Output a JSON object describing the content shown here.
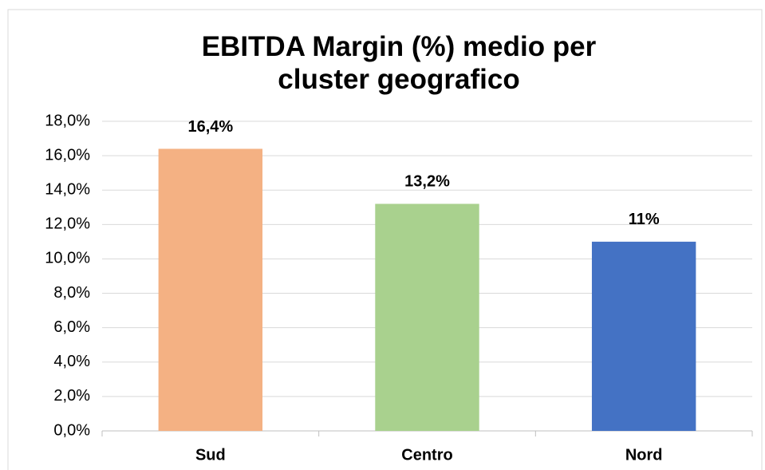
{
  "chart_data": {
    "type": "bar",
    "title": "EBITDA Margin (%) medio per cluster geografico",
    "categories": [
      "Sud",
      "Centro",
      "Nord"
    ],
    "values": [
      16.4,
      13.2,
      11
    ],
    "value_labels": [
      "16,4%",
      "13,2%",
      "11%"
    ],
    "colors": [
      "#f4b183",
      "#a9d18e",
      "#4472c4"
    ],
    "ylim": [
      0,
      18
    ],
    "yticks": [
      {
        "value": 0,
        "label": "0,0%"
      },
      {
        "value": 2,
        "label": "2,0%"
      },
      {
        "value": 4,
        "label": "4,0%"
      },
      {
        "value": 6,
        "label": "6,0%"
      },
      {
        "value": 8,
        "label": "8,0%"
      },
      {
        "value": 10,
        "label": "10,0%"
      },
      {
        "value": 12,
        "label": "12,0%"
      },
      {
        "value": 14,
        "label": "14,0%"
      },
      {
        "value": 16,
        "label": "16,0%"
      },
      {
        "value": 18,
        "label": "18,0%"
      }
    ],
    "grid": true
  }
}
